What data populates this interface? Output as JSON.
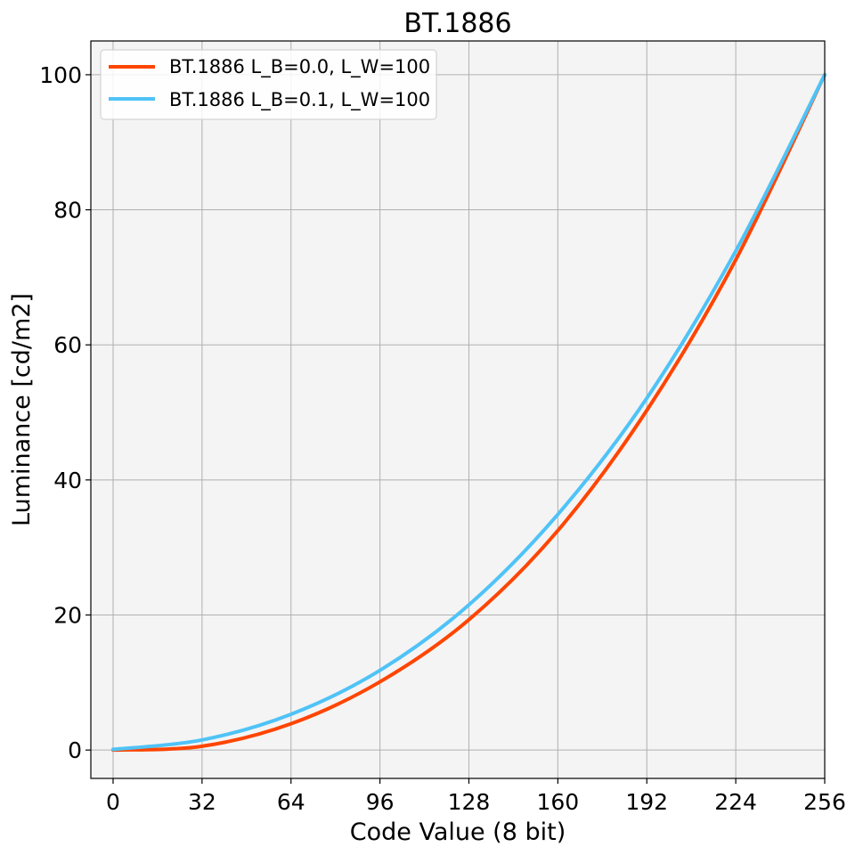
{
  "chart_data": {
    "type": "line",
    "title": "BT.1886",
    "xlabel": "Code Value (8 bit)",
    "ylabel": "Luminance [cd/m2]",
    "xlim": [
      -8,
      256
    ],
    "ylim": [
      -4.2,
      105
    ],
    "xticks": [
      0,
      32,
      64,
      96,
      128,
      160,
      192,
      224,
      256
    ],
    "yticks": [
      0,
      20,
      40,
      60,
      80,
      100
    ],
    "grid": true,
    "legend_position": "top-left",
    "plot_background": "#f4f4f4",
    "grid_color": "#b0b0b0",
    "x": [
      0,
      32,
      64,
      96,
      128,
      160,
      192,
      224,
      256
    ],
    "series": [
      {
        "name": "BT.1886 L_B=0.0, L_W=100",
        "color": "#ff4500",
        "values": [
          0.0,
          0.56,
          3.89,
          10.1,
          19.3,
          32.5,
          50.3,
          72.6,
          100.0
        ]
      },
      {
        "name": "BT.1886 L_B=0.1, L_W=100",
        "color": "#4fc3f7",
        "values": [
          0.1,
          1.5,
          5.3,
          11.8,
          21.5,
          34.9,
          52.1,
          73.9,
          100.0
        ]
      }
    ]
  }
}
